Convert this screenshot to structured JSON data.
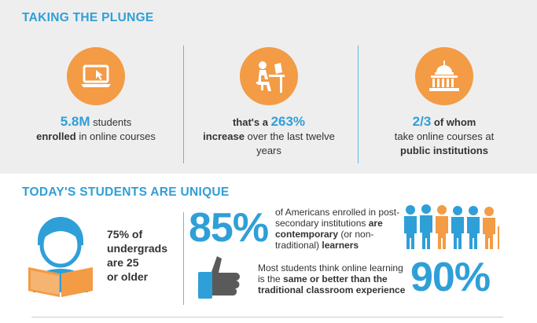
{
  "section1": {
    "heading": "TAKING THE PLUNGE",
    "stats": [
      {
        "icon": "laptop-cursor-icon",
        "big": "5.8M",
        "t1": " students",
        "bold1": "enrolled",
        "t2": " in online courses"
      },
      {
        "icon": "student-at-desk-icon",
        "lead": "that's a ",
        "big": "263%",
        "bold1": "increase",
        "t2": " over the last twelve years"
      },
      {
        "icon": "capitol-building-icon",
        "big": "2/3",
        "bold_after": " of whom",
        "t2": "take online courses at",
        "bold2": "public institutions"
      }
    ]
  },
  "section2": {
    "heading": "TODAY'S STUDENTS ARE UNIQUE",
    "undergrads": {
      "pct": "75%",
      "of": " of",
      "line2": "undergrads",
      "line3a": "are ",
      "line3b": "25",
      "line4": "or older"
    },
    "contemporary": {
      "big": "85%",
      "t1": "of Americans enrolled in post-secondary institutions ",
      "bold": "are contemporary",
      "t2": " (or non-traditional) ",
      "bold2": "learners"
    },
    "online": {
      "big": "90%",
      "t1": "Most students think online learning is the ",
      "bold": "same or better than the traditional classroom experience"
    }
  },
  "colors": {
    "accent": "#2f9fd8",
    "orange": "#f39b45",
    "band": "#eeeeee"
  }
}
